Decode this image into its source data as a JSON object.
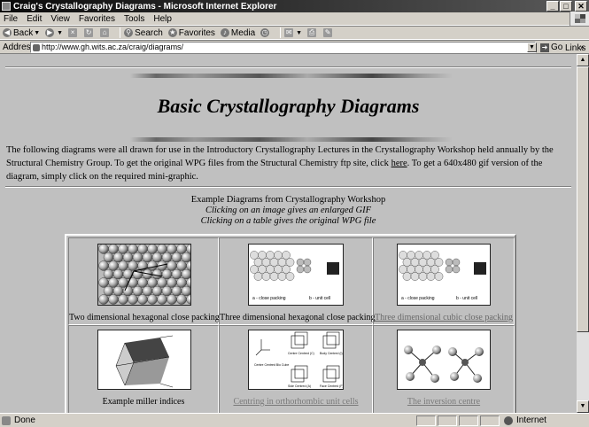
{
  "window": {
    "title": "Craig's Crystallography Diagrams - Microsoft Internet Explorer",
    "buttons": {
      "minimize": "_",
      "maximize": "□",
      "close": "✕"
    }
  },
  "menu": [
    "File",
    "Edit",
    "View",
    "Favorites",
    "Tools",
    "Help"
  ],
  "toolbar": {
    "back": "Back",
    "search": "Search",
    "favorites": "Favorites",
    "media": "Media"
  },
  "address": {
    "label": "Address",
    "url": "http://www.gh.wits.ac.za/craig/diagrams/",
    "go": "Go",
    "links": "Links"
  },
  "page": {
    "title": "Basic Crystallography Diagrams",
    "intro_before_link": "The following diagrams were all drawn for use in the Introductory Crystallography Lectures in the Crystallography Workshop held annually by the Structural Chemistry Group. To get the original WPG files from the Structural Chemistry ftp site, click ",
    "intro_link": "here",
    "intro_after_link": ". To get a 640x480 gif version of the diagram, simply click on the required mini-graphic.",
    "caption_line1": "Example Diagrams from Crystallography Workshop",
    "caption_line2": "Clicking on an image gives an enlarged GIF",
    "caption_line3": "Clicking on a table gives the original WPG file"
  },
  "diagrams": [
    {
      "label": "Two dimensional hexagonal close packing",
      "is_link": false
    },
    {
      "label": "Three dimensional hexagonal close packing",
      "is_link": false
    },
    {
      "label": "Three dimensional cubic close packing",
      "is_link": true
    },
    {
      "label": "Example miller indices",
      "is_link": false
    },
    {
      "label": "Centring in orthorhombic unit cells",
      "is_link": true
    },
    {
      "label": "The inversion centre",
      "is_link": true
    }
  ],
  "thumb_text": {
    "hcp_a": "a - close packing",
    "hcp_b": "b - unit cell",
    "ccp_a": "a - close packing",
    "ccp_b": "b - unit cell",
    "centred_face": "Centre Centred (C)",
    "body_centred": "Body Centred (I)",
    "face_centred": "Face Centred (F)",
    "center": "Centre Centred\nBio Cube",
    "side_centred": "Side Centred (A)",
    "side_centred_b": "Side Centred (B)"
  },
  "status": {
    "text": "Done",
    "zone": "Internet"
  }
}
